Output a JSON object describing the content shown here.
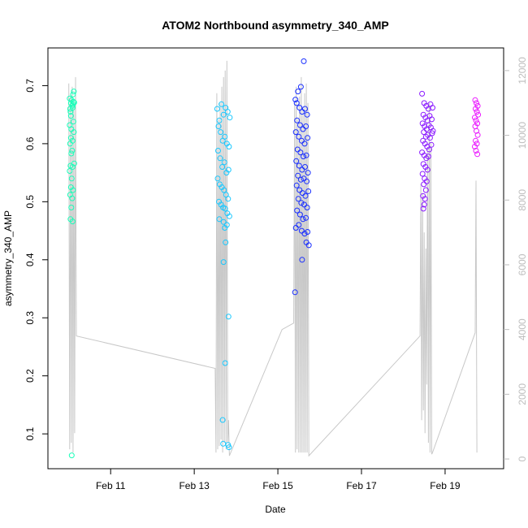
{
  "chart_data": {
    "type": "scatter",
    "title": "ATOM2 Northbound asymmetry_340_AMP",
    "xlabel": "Date",
    "ylabel": "asymmetry_340_AMP",
    "x_unit": "days (Feb 2020)",
    "xlim": [
      9.5,
      20.4
    ],
    "ylim": [
      0.04,
      0.765
    ],
    "y_ticks": [
      0.1,
      0.2,
      0.3,
      0.4,
      0.5,
      0.6,
      0.7
    ],
    "x_ticks": [
      11,
      13,
      15,
      17,
      19
    ],
    "x_tick_labels": [
      "Feb 11",
      "Feb 13",
      "Feb 15",
      "Feb 17",
      "Feb 19"
    ],
    "y2lim": [
      -300,
      12700
    ],
    "y2_ticks": [
      0,
      2000,
      4000,
      6000,
      8000,
      10000,
      12000
    ],
    "grid": false,
    "colors": {
      "line": "#c8c8c8",
      "clusters": [
        "#19ffb9",
        "#19c8ff",
        "#1a2fff",
        "#8a19ff",
        "#ea19ff"
      ]
    },
    "point_clusters": [
      {
        "color": "#19ffb9",
        "points": [
          [
            10.02,
            0.678
          ],
          [
            10.05,
            0.67
          ],
          [
            10.08,
            0.665
          ],
          [
            10.11,
            0.672
          ],
          [
            10.03,
            0.66
          ],
          [
            10.07,
            0.675
          ],
          [
            10.1,
            0.668
          ],
          [
            10.13,
            0.671
          ],
          [
            10.04,
            0.655
          ],
          [
            10.09,
            0.662
          ],
          [
            10.02,
            0.632
          ],
          [
            10.06,
            0.625
          ],
          [
            10.11,
            0.638
          ],
          [
            10.05,
            0.61
          ],
          [
            10.09,
            0.605
          ],
          [
            10.03,
            0.6
          ],
          [
            10.08,
            0.588
          ],
          [
            10.12,
            0.62
          ],
          [
            10.06,
            0.583
          ],
          [
            10.04,
            0.562
          ],
          [
            10.09,
            0.56
          ],
          [
            10.13,
            0.566
          ],
          [
            10.02,
            0.553
          ],
          [
            10.07,
            0.54
          ],
          [
            10.05,
            0.525
          ],
          [
            10.1,
            0.52
          ],
          [
            10.03,
            0.512
          ],
          [
            10.08,
            0.506
          ],
          [
            10.06,
            0.49
          ],
          [
            10.04,
            0.47
          ],
          [
            10.09,
            0.466
          ],
          [
            10.07,
            0.063
          ],
          [
            10.12,
            0.69
          ],
          [
            10.1,
            0.685
          ],
          [
            10.05,
            0.648
          ]
        ]
      },
      {
        "color": "#19c8ff",
        "points": [
          [
            13.55,
            0.66
          ],
          [
            13.6,
            0.64
          ],
          [
            13.65,
            0.668
          ],
          [
            13.7,
            0.65
          ],
          [
            13.75,
            0.662
          ],
          [
            13.8,
            0.655
          ],
          [
            13.85,
            0.645
          ],
          [
            13.58,
            0.63
          ],
          [
            13.63,
            0.62
          ],
          [
            13.68,
            0.605
          ],
          [
            13.73,
            0.612
          ],
          [
            13.78,
            0.6
          ],
          [
            13.83,
            0.595
          ],
          [
            13.57,
            0.588
          ],
          [
            13.62,
            0.575
          ],
          [
            13.67,
            0.56
          ],
          [
            13.72,
            0.568
          ],
          [
            13.77,
            0.55
          ],
          [
            13.82,
            0.555
          ],
          [
            13.56,
            0.54
          ],
          [
            13.61,
            0.53
          ],
          [
            13.66,
            0.525
          ],
          [
            13.71,
            0.52
          ],
          [
            13.76,
            0.512
          ],
          [
            13.81,
            0.505
          ],
          [
            13.59,
            0.5
          ],
          [
            13.64,
            0.495
          ],
          [
            13.69,
            0.49
          ],
          [
            13.74,
            0.488
          ],
          [
            13.79,
            0.48
          ],
          [
            13.84,
            0.475
          ],
          [
            13.6,
            0.47
          ],
          [
            13.7,
            0.465
          ],
          [
            13.78,
            0.46
          ],
          [
            13.73,
            0.455
          ],
          [
            13.75,
            0.43
          ],
          [
            13.7,
            0.396
          ],
          [
            13.82,
            0.302
          ],
          [
            13.74,
            0.222
          ],
          [
            13.68,
            0.124
          ],
          [
            13.69,
            0.083
          ],
          [
            13.81,
            0.081
          ],
          [
            13.83,
            0.077
          ]
        ]
      },
      {
        "color": "#1a2fff",
        "points": [
          [
            15.42,
            0.676
          ],
          [
            15.48,
            0.69
          ],
          [
            15.55,
            0.698
          ],
          [
            15.62,
            0.742
          ],
          [
            15.45,
            0.67
          ],
          [
            15.52,
            0.662
          ],
          [
            15.58,
            0.655
          ],
          [
            15.65,
            0.66
          ],
          [
            15.7,
            0.65
          ],
          [
            15.46,
            0.64
          ],
          [
            15.53,
            0.632
          ],
          [
            15.6,
            0.625
          ],
          [
            15.67,
            0.63
          ],
          [
            15.43,
            0.62
          ],
          [
            15.5,
            0.612
          ],
          [
            15.57,
            0.605
          ],
          [
            15.64,
            0.6
          ],
          [
            15.71,
            0.61
          ],
          [
            15.47,
            0.59
          ],
          [
            15.54,
            0.585
          ],
          [
            15.61,
            0.578
          ],
          [
            15.68,
            0.58
          ],
          [
            15.44,
            0.57
          ],
          [
            15.51,
            0.562
          ],
          [
            15.58,
            0.555
          ],
          [
            15.65,
            0.56
          ],
          [
            15.72,
            0.55
          ],
          [
            15.48,
            0.545
          ],
          [
            15.55,
            0.538
          ],
          [
            15.62,
            0.54
          ],
          [
            15.69,
            0.535
          ],
          [
            15.45,
            0.528
          ],
          [
            15.52,
            0.52
          ],
          [
            15.59,
            0.515
          ],
          [
            15.66,
            0.51
          ],
          [
            15.73,
            0.518
          ],
          [
            15.49,
            0.505
          ],
          [
            15.56,
            0.498
          ],
          [
            15.63,
            0.495
          ],
          [
            15.7,
            0.49
          ],
          [
            15.46,
            0.485
          ],
          [
            15.53,
            0.478
          ],
          [
            15.6,
            0.47
          ],
          [
            15.67,
            0.472
          ],
          [
            15.5,
            0.46
          ],
          [
            15.57,
            0.45
          ],
          [
            15.64,
            0.445
          ],
          [
            15.71,
            0.448
          ],
          [
            15.43,
            0.455
          ],
          [
            15.68,
            0.43
          ],
          [
            15.74,
            0.425
          ],
          [
            15.58,
            0.4
          ],
          [
            15.41,
            0.344
          ]
        ]
      },
      {
        "color": "#8a19ff",
        "points": [
          [
            18.45,
            0.686
          ],
          [
            18.5,
            0.67
          ],
          [
            18.55,
            0.665
          ],
          [
            18.6,
            0.66
          ],
          [
            18.65,
            0.668
          ],
          [
            18.7,
            0.662
          ],
          [
            18.48,
            0.65
          ],
          [
            18.53,
            0.645
          ],
          [
            18.58,
            0.64
          ],
          [
            18.63,
            0.648
          ],
          [
            18.68,
            0.642
          ],
          [
            18.46,
            0.635
          ],
          [
            18.51,
            0.63
          ],
          [
            18.56,
            0.625
          ],
          [
            18.61,
            0.632
          ],
          [
            18.66,
            0.628
          ],
          [
            18.71,
            0.622
          ],
          [
            18.49,
            0.62
          ],
          [
            18.54,
            0.612
          ],
          [
            18.59,
            0.615
          ],
          [
            18.64,
            0.61
          ],
          [
            18.69,
            0.618
          ],
          [
            18.47,
            0.605
          ],
          [
            18.52,
            0.6
          ],
          [
            18.57,
            0.595
          ],
          [
            18.62,
            0.59
          ],
          [
            18.67,
            0.598
          ],
          [
            18.45,
            0.585
          ],
          [
            18.5,
            0.58
          ],
          [
            18.55,
            0.575
          ],
          [
            18.6,
            0.578
          ],
          [
            18.48,
            0.565
          ],
          [
            18.53,
            0.56
          ],
          [
            18.58,
            0.555
          ],
          [
            18.46,
            0.548
          ],
          [
            18.51,
            0.54
          ],
          [
            18.56,
            0.535
          ],
          [
            18.49,
            0.53
          ],
          [
            18.54,
            0.52
          ],
          [
            18.47,
            0.51
          ],
          [
            18.52,
            0.505
          ],
          [
            18.5,
            0.495
          ],
          [
            18.48,
            0.488
          ]
        ]
      },
      {
        "color": "#ea19ff",
        "points": [
          [
            19.72,
            0.675
          ],
          [
            19.75,
            0.67
          ],
          [
            19.78,
            0.665
          ],
          [
            19.73,
            0.66
          ],
          [
            19.76,
            0.655
          ],
          [
            19.79,
            0.65
          ],
          [
            19.71,
            0.645
          ],
          [
            19.74,
            0.64
          ],
          [
            19.77,
            0.635
          ],
          [
            19.72,
            0.63
          ],
          [
            19.75,
            0.622
          ],
          [
            19.78,
            0.615
          ],
          [
            19.73,
            0.605
          ],
          [
            19.76,
            0.6
          ],
          [
            19.71,
            0.595
          ],
          [
            19.74,
            0.588
          ],
          [
            19.77,
            0.582
          ]
        ]
      }
    ],
    "line_series": [
      {
        "axis": "right",
        "color": "#c8c8c8",
        "points": [
          [
            10.0,
            11600
          ],
          [
            10.02,
            300
          ],
          [
            10.04,
            11200
          ],
          [
            10.06,
            500
          ],
          [
            10.08,
            11500
          ],
          [
            10.1,
            200
          ],
          [
            10.12,
            11000
          ],
          [
            10.14,
            800
          ],
          [
            10.16,
            11800
          ],
          [
            10.18,
            3800
          ],
          [
            13.5,
            2800
          ],
          [
            13.52,
            200
          ],
          [
            13.54,
            11300
          ],
          [
            13.56,
            300
          ],
          [
            13.58,
            10500
          ],
          [
            13.6,
            400
          ],
          [
            13.62,
            11000
          ],
          [
            13.64,
            600
          ],
          [
            13.66,
            11500
          ],
          [
            13.68,
            200
          ],
          [
            13.7,
            11800
          ],
          [
            13.72,
            500
          ],
          [
            13.74,
            12000
          ],
          [
            13.76,
            300
          ],
          [
            13.78,
            12300
          ],
          [
            13.8,
            500
          ],
          [
            13.82,
            1200
          ],
          [
            13.84,
            100
          ],
          [
            15.1,
            4000
          ],
          [
            15.38,
            4200
          ],
          [
            15.4,
            11000
          ],
          [
            15.42,
            200
          ],
          [
            15.44,
            11500
          ],
          [
            15.46,
            300
          ],
          [
            15.48,
            10500
          ],
          [
            15.5,
            200
          ],
          [
            15.52,
            11200
          ],
          [
            15.54,
            200
          ],
          [
            15.56,
            11800
          ],
          [
            15.58,
            200
          ],
          [
            15.6,
            10800
          ],
          [
            15.62,
            200
          ],
          [
            15.64,
            11300
          ],
          [
            15.66,
            200
          ],
          [
            15.68,
            11600
          ],
          [
            15.7,
            200
          ],
          [
            15.72,
            11000
          ],
          [
            15.74,
            100
          ],
          [
            18.4,
            3800
          ],
          [
            18.42,
            8500
          ],
          [
            18.44,
            1200
          ],
          [
            18.46,
            8200
          ],
          [
            18.48,
            1500
          ],
          [
            18.5,
            7000
          ],
          [
            18.52,
            800
          ],
          [
            18.54,
            6500
          ],
          [
            18.56,
            2300
          ],
          [
            18.58,
            9500
          ],
          [
            18.6,
            500
          ],
          [
            18.62,
            11000
          ],
          [
            18.64,
            200
          ],
          [
            18.66,
            9800
          ],
          [
            18.68,
            150
          ],
          [
            18.7,
            200
          ],
          [
            19.72,
            3900
          ],
          [
            19.74,
            8600
          ],
          [
            19.76,
            200
          ]
        ]
      }
    ]
  }
}
